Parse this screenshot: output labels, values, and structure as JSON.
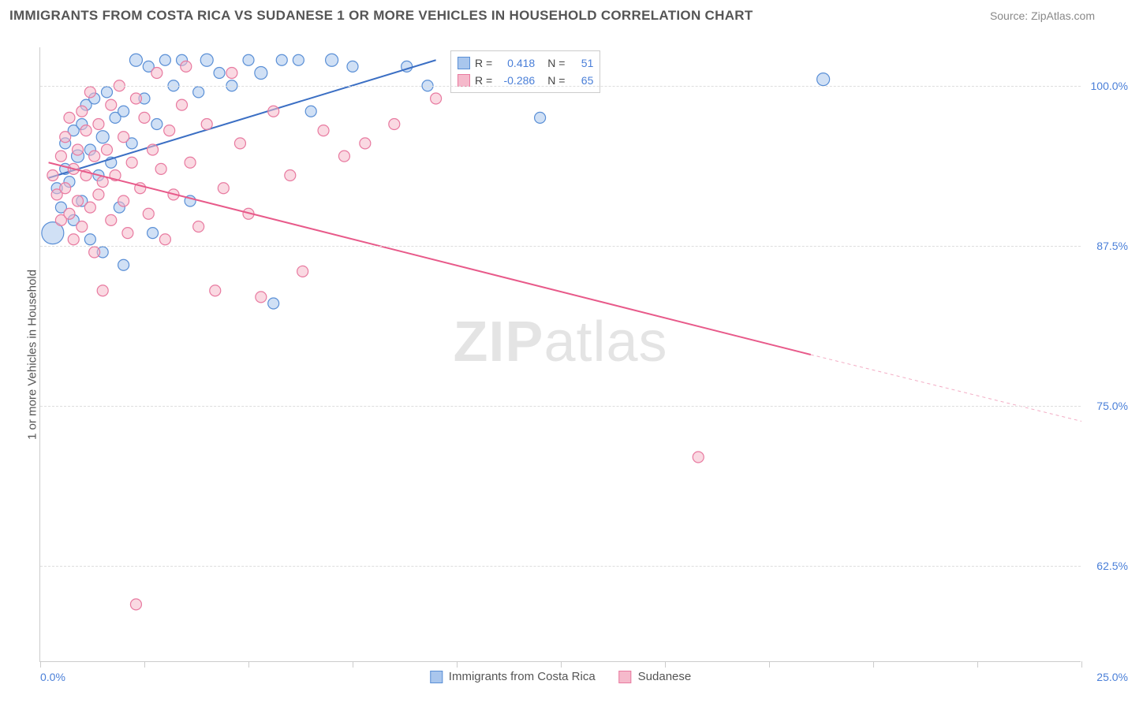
{
  "title": "IMMIGRANTS FROM COSTA RICA VS SUDANESE 1 OR MORE VEHICLES IN HOUSEHOLD CORRELATION CHART",
  "source": "Source: ZipAtlas.com",
  "yaxis_label": "1 or more Vehicles in Household",
  "watermark": "ZIPatlas",
  "chart": {
    "type": "scatter",
    "xlim": [
      0,
      25
    ],
    "ylim": [
      55,
      103
    ],
    "background_color": "#ffffff",
    "grid_color": "#dddddd",
    "axis_color": "#cccccc",
    "tick_color": "#4a7fd8",
    "ytick_positions": [
      62.5,
      75.0,
      87.5,
      100.0
    ],
    "ytick_labels": [
      "62.5%",
      "75.0%",
      "87.5%",
      "100.0%"
    ],
    "xtick_positions": [
      0,
      2.5,
      5,
      7.5,
      10,
      12.5,
      15,
      17.5,
      20,
      22.5,
      25
    ],
    "xtick_labels_start": "0.0%",
    "xtick_labels_end": "25.0%",
    "series": [
      {
        "name": "Immigrants from Costa Rica",
        "color_fill": "#a9c6ed",
        "color_stroke": "#5a8fd6",
        "fill_opacity": 0.55,
        "line_color": "#3b6fc4",
        "line_width": 2,
        "R": "0.418",
        "N": "51",
        "trend": {
          "x1": 0.2,
          "y1": 92.8,
          "x2": 9.5,
          "y2": 102.0
        },
        "points": [
          {
            "x": 0.3,
            "y": 88.5,
            "r": 14
          },
          {
            "x": 0.4,
            "y": 92.0,
            "r": 7
          },
          {
            "x": 0.5,
            "y": 90.5,
            "r": 7
          },
          {
            "x": 0.6,
            "y": 93.5,
            "r": 7
          },
          {
            "x": 0.6,
            "y": 95.5,
            "r": 7
          },
          {
            "x": 0.7,
            "y": 92.5,
            "r": 7
          },
          {
            "x": 0.8,
            "y": 96.5,
            "r": 7
          },
          {
            "x": 0.8,
            "y": 89.5,
            "r": 7
          },
          {
            "x": 0.9,
            "y": 94.5,
            "r": 8
          },
          {
            "x": 1.0,
            "y": 97.0,
            "r": 7
          },
          {
            "x": 1.0,
            "y": 91.0,
            "r": 7
          },
          {
            "x": 1.1,
            "y": 98.5,
            "r": 7
          },
          {
            "x": 1.2,
            "y": 95.0,
            "r": 7
          },
          {
            "x": 1.2,
            "y": 88.0,
            "r": 7
          },
          {
            "x": 1.3,
            "y": 99.0,
            "r": 7
          },
          {
            "x": 1.4,
            "y": 93.0,
            "r": 7
          },
          {
            "x": 1.5,
            "y": 96.0,
            "r": 8
          },
          {
            "x": 1.5,
            "y": 87.0,
            "r": 7
          },
          {
            "x": 1.6,
            "y": 99.5,
            "r": 7
          },
          {
            "x": 1.7,
            "y": 94.0,
            "r": 7
          },
          {
            "x": 1.8,
            "y": 97.5,
            "r": 7
          },
          {
            "x": 1.9,
            "y": 90.5,
            "r": 7
          },
          {
            "x": 2.0,
            "y": 86.0,
            "r": 7
          },
          {
            "x": 2.0,
            "y": 98.0,
            "r": 7
          },
          {
            "x": 2.2,
            "y": 95.5,
            "r": 7
          },
          {
            "x": 2.3,
            "y": 102.0,
            "r": 8
          },
          {
            "x": 2.5,
            "y": 99.0,
            "r": 7
          },
          {
            "x": 2.6,
            "y": 101.5,
            "r": 7
          },
          {
            "x": 2.7,
            "y": 88.5,
            "r": 7
          },
          {
            "x": 2.8,
            "y": 97.0,
            "r": 7
          },
          {
            "x": 3.0,
            "y": 102.0,
            "r": 7
          },
          {
            "x": 3.2,
            "y": 100.0,
            "r": 7
          },
          {
            "x": 3.4,
            "y": 102.0,
            "r": 7
          },
          {
            "x": 3.6,
            "y": 91.0,
            "r": 7
          },
          {
            "x": 3.8,
            "y": 99.5,
            "r": 7
          },
          {
            "x": 4.0,
            "y": 102.0,
            "r": 8
          },
          {
            "x": 4.3,
            "y": 101.0,
            "r": 7
          },
          {
            "x": 4.6,
            "y": 100.0,
            "r": 7
          },
          {
            "x": 5.0,
            "y": 102.0,
            "r": 7
          },
          {
            "x": 5.3,
            "y": 101.0,
            "r": 8
          },
          {
            "x": 5.6,
            "y": 83.0,
            "r": 7
          },
          {
            "x": 5.8,
            "y": 102.0,
            "r": 7
          },
          {
            "x": 6.2,
            "y": 102.0,
            "r": 7
          },
          {
            "x": 6.5,
            "y": 98.0,
            "r": 7
          },
          {
            "x": 7.0,
            "y": 102.0,
            "r": 8
          },
          {
            "x": 7.5,
            "y": 101.5,
            "r": 7
          },
          {
            "x": 8.8,
            "y": 101.5,
            "r": 7
          },
          {
            "x": 9.3,
            "y": 100.0,
            "r": 7
          },
          {
            "x": 12.0,
            "y": 97.5,
            "r": 7
          },
          {
            "x": 18.8,
            "y": 100.5,
            "r": 8
          }
        ]
      },
      {
        "name": "Sudanese",
        "color_fill": "#f5b9cb",
        "color_stroke": "#e87aa0",
        "fill_opacity": 0.55,
        "line_color": "#e85a8a",
        "line_width": 2,
        "R": "-0.286",
        "N": "65",
        "trend": {
          "x1": 0.2,
          "y1": 94.0,
          "x2": 18.5,
          "y2": 79.0
        },
        "trend_dash": {
          "x1": 18.5,
          "y1": 79.0,
          "x2": 25.0,
          "y2": 73.8
        },
        "points": [
          {
            "x": 0.3,
            "y": 93.0,
            "r": 7
          },
          {
            "x": 0.4,
            "y": 91.5,
            "r": 7
          },
          {
            "x": 0.5,
            "y": 94.5,
            "r": 7
          },
          {
            "x": 0.5,
            "y": 89.5,
            "r": 7
          },
          {
            "x": 0.6,
            "y": 96.0,
            "r": 7
          },
          {
            "x": 0.6,
            "y": 92.0,
            "r": 7
          },
          {
            "x": 0.7,
            "y": 90.0,
            "r": 7
          },
          {
            "x": 0.7,
            "y": 97.5,
            "r": 7
          },
          {
            "x": 0.8,
            "y": 93.5,
            "r": 7
          },
          {
            "x": 0.8,
            "y": 88.0,
            "r": 7
          },
          {
            "x": 0.9,
            "y": 95.0,
            "r": 7
          },
          {
            "x": 0.9,
            "y": 91.0,
            "r": 7
          },
          {
            "x": 1.0,
            "y": 98.0,
            "r": 7
          },
          {
            "x": 1.0,
            "y": 89.0,
            "r": 7
          },
          {
            "x": 1.1,
            "y": 93.0,
            "r": 7
          },
          {
            "x": 1.1,
            "y": 96.5,
            "r": 7
          },
          {
            "x": 1.2,
            "y": 90.5,
            "r": 7
          },
          {
            "x": 1.2,
            "y": 99.5,
            "r": 7
          },
          {
            "x": 1.3,
            "y": 87.0,
            "r": 7
          },
          {
            "x": 1.3,
            "y": 94.5,
            "r": 7
          },
          {
            "x": 1.4,
            "y": 91.5,
            "r": 7
          },
          {
            "x": 1.4,
            "y": 97.0,
            "r": 7
          },
          {
            "x": 1.5,
            "y": 84.0,
            "r": 7
          },
          {
            "x": 1.5,
            "y": 92.5,
            "r": 7
          },
          {
            "x": 1.6,
            "y": 95.0,
            "r": 7
          },
          {
            "x": 1.7,
            "y": 89.5,
            "r": 7
          },
          {
            "x": 1.7,
            "y": 98.5,
            "r": 7
          },
          {
            "x": 1.8,
            "y": 93.0,
            "r": 7
          },
          {
            "x": 1.9,
            "y": 100.0,
            "r": 7
          },
          {
            "x": 2.0,
            "y": 91.0,
            "r": 7
          },
          {
            "x": 2.0,
            "y": 96.0,
            "r": 7
          },
          {
            "x": 2.1,
            "y": 88.5,
            "r": 7
          },
          {
            "x": 2.2,
            "y": 94.0,
            "r": 7
          },
          {
            "x": 2.3,
            "y": 99.0,
            "r": 7
          },
          {
            "x": 2.3,
            "y": 59.5,
            "r": 7
          },
          {
            "x": 2.4,
            "y": 92.0,
            "r": 7
          },
          {
            "x": 2.5,
            "y": 97.5,
            "r": 7
          },
          {
            "x": 2.6,
            "y": 90.0,
            "r": 7
          },
          {
            "x": 2.7,
            "y": 95.0,
            "r": 7
          },
          {
            "x": 2.8,
            "y": 101.0,
            "r": 7
          },
          {
            "x": 2.9,
            "y": 93.5,
            "r": 7
          },
          {
            "x": 3.0,
            "y": 88.0,
            "r": 7
          },
          {
            "x": 3.1,
            "y": 96.5,
            "r": 7
          },
          {
            "x": 3.2,
            "y": 91.5,
            "r": 7
          },
          {
            "x": 3.4,
            "y": 98.5,
            "r": 7
          },
          {
            "x": 3.5,
            "y": 101.5,
            "r": 7
          },
          {
            "x": 3.6,
            "y": 94.0,
            "r": 7
          },
          {
            "x": 3.8,
            "y": 89.0,
            "r": 7
          },
          {
            "x": 4.0,
            "y": 97.0,
            "r": 7
          },
          {
            "x": 4.2,
            "y": 84.0,
            "r": 7
          },
          {
            "x": 4.4,
            "y": 92.0,
            "r": 7
          },
          {
            "x": 4.6,
            "y": 101.0,
            "r": 7
          },
          {
            "x": 4.8,
            "y": 95.5,
            "r": 7
          },
          {
            "x": 5.0,
            "y": 90.0,
            "r": 7
          },
          {
            "x": 5.3,
            "y": 83.5,
            "r": 7
          },
          {
            "x": 5.6,
            "y": 98.0,
            "r": 7
          },
          {
            "x": 6.0,
            "y": 93.0,
            "r": 7
          },
          {
            "x": 6.3,
            "y": 85.5,
            "r": 7
          },
          {
            "x": 6.8,
            "y": 96.5,
            "r": 7
          },
          {
            "x": 7.3,
            "y": 94.5,
            "r": 7
          },
          {
            "x": 7.8,
            "y": 95.5,
            "r": 7
          },
          {
            "x": 8.5,
            "y": 97.0,
            "r": 7
          },
          {
            "x": 9.5,
            "y": 99.0,
            "r": 7
          },
          {
            "x": 15.8,
            "y": 71.0,
            "r": 7
          }
        ]
      }
    ]
  },
  "bottom_legend": [
    {
      "label": "Immigrants from Costa Rica",
      "fill": "#a9c6ed",
      "stroke": "#5a8fd6"
    },
    {
      "label": "Sudanese",
      "fill": "#f5b9cb",
      "stroke": "#e87aa0"
    }
  ],
  "legend_box": {
    "R_label": "R =",
    "N_label": "N ="
  }
}
